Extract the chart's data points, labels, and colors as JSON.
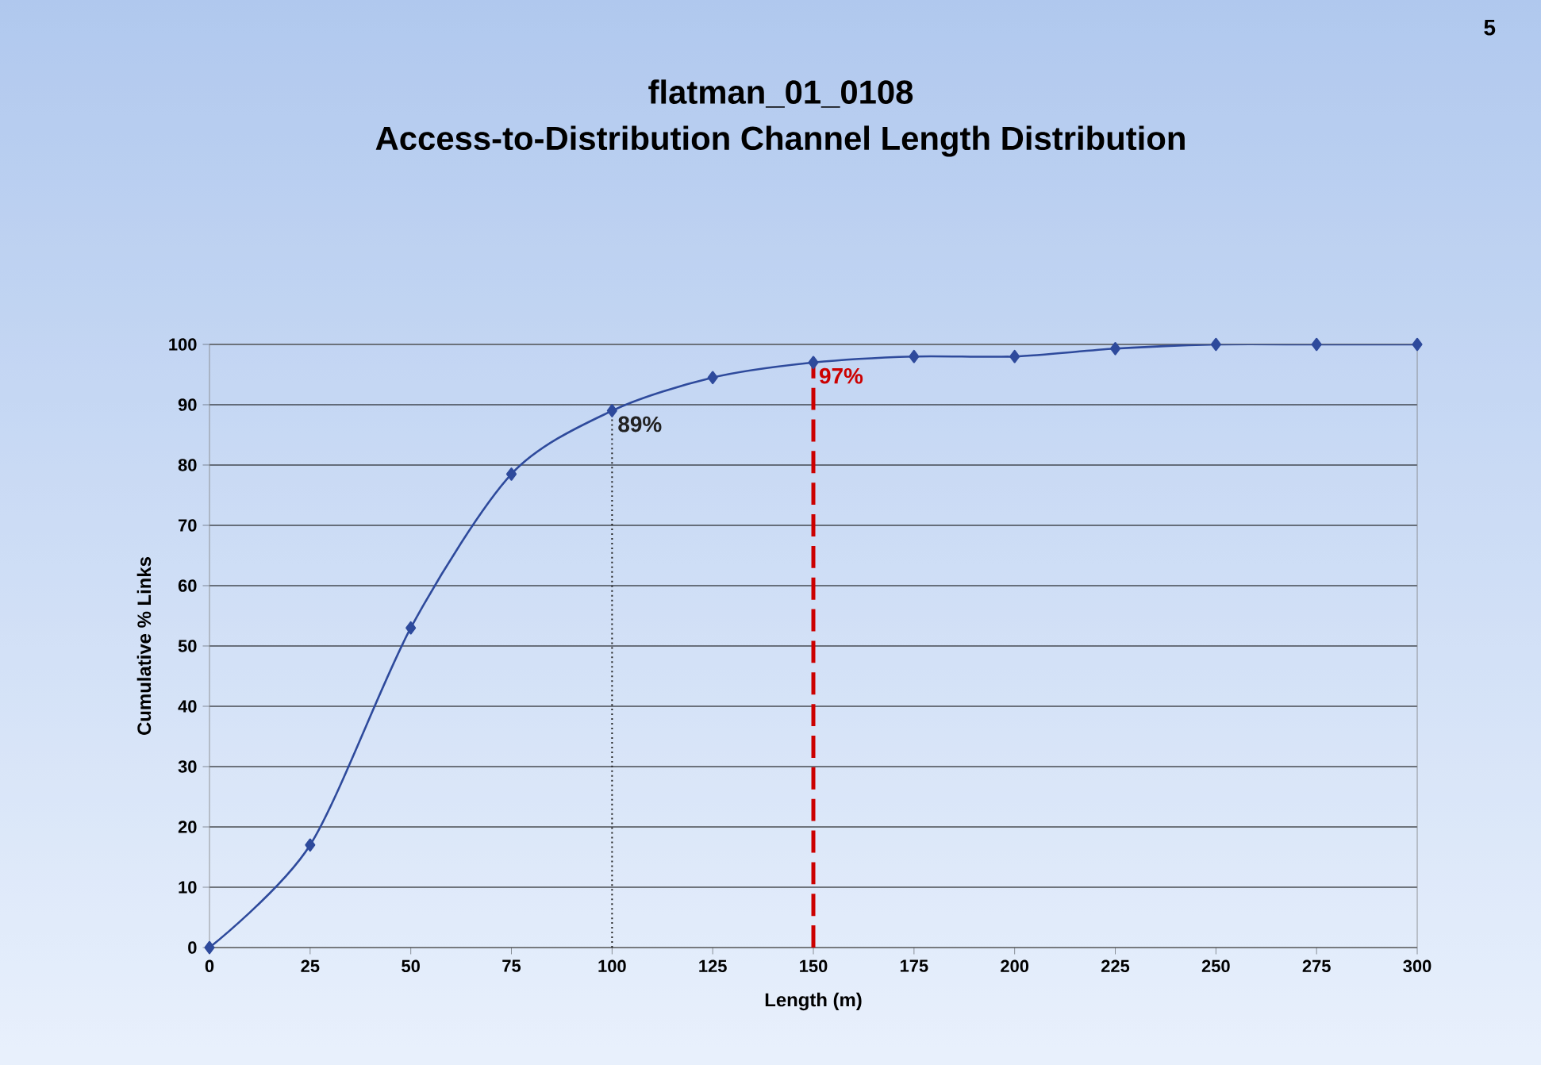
{
  "chart_data": {
    "type": "line",
    "title": "flatman_01_0108",
    "subtitle": "Access-to-Distribution Channel Length Distribution",
    "xlabel": "Length (m)",
    "ylabel": "Cumulative % Links",
    "x": [
      0,
      25,
      50,
      75,
      100,
      125,
      150,
      175,
      200,
      225,
      250,
      275,
      300
    ],
    "series": [
      {
        "color": "#2e4a9c",
        "values": [
          0,
          17,
          53,
          78.5,
          89,
          94.5,
          97,
          98,
          98,
          99.3,
          100,
          100,
          100
        ]
      }
    ],
    "xlim": [
      0,
      300
    ],
    "ylim": [
      0,
      100
    ],
    "xticks": [
      0,
      25,
      50,
      75,
      100,
      125,
      150,
      175,
      200,
      225,
      250,
      275,
      300
    ],
    "yticks": [
      0,
      10,
      20,
      30,
      40,
      50,
      60,
      70,
      80,
      90,
      100
    ],
    "grid": "y",
    "marker": "diamond",
    "ref_lines": [
      {
        "axis": "x",
        "value": 100,
        "color": "#222222",
        "line_style": "dotted"
      },
      {
        "axis": "x",
        "value": 150,
        "color": "#cc0000",
        "line_style": "dashed"
      }
    ],
    "annotations": [
      "5",
      {
        "text": "89%",
        "x": 100,
        "y": 89
      },
      {
        "text": "97%",
        "x": 150,
        "y": 97
      }
    ]
  }
}
